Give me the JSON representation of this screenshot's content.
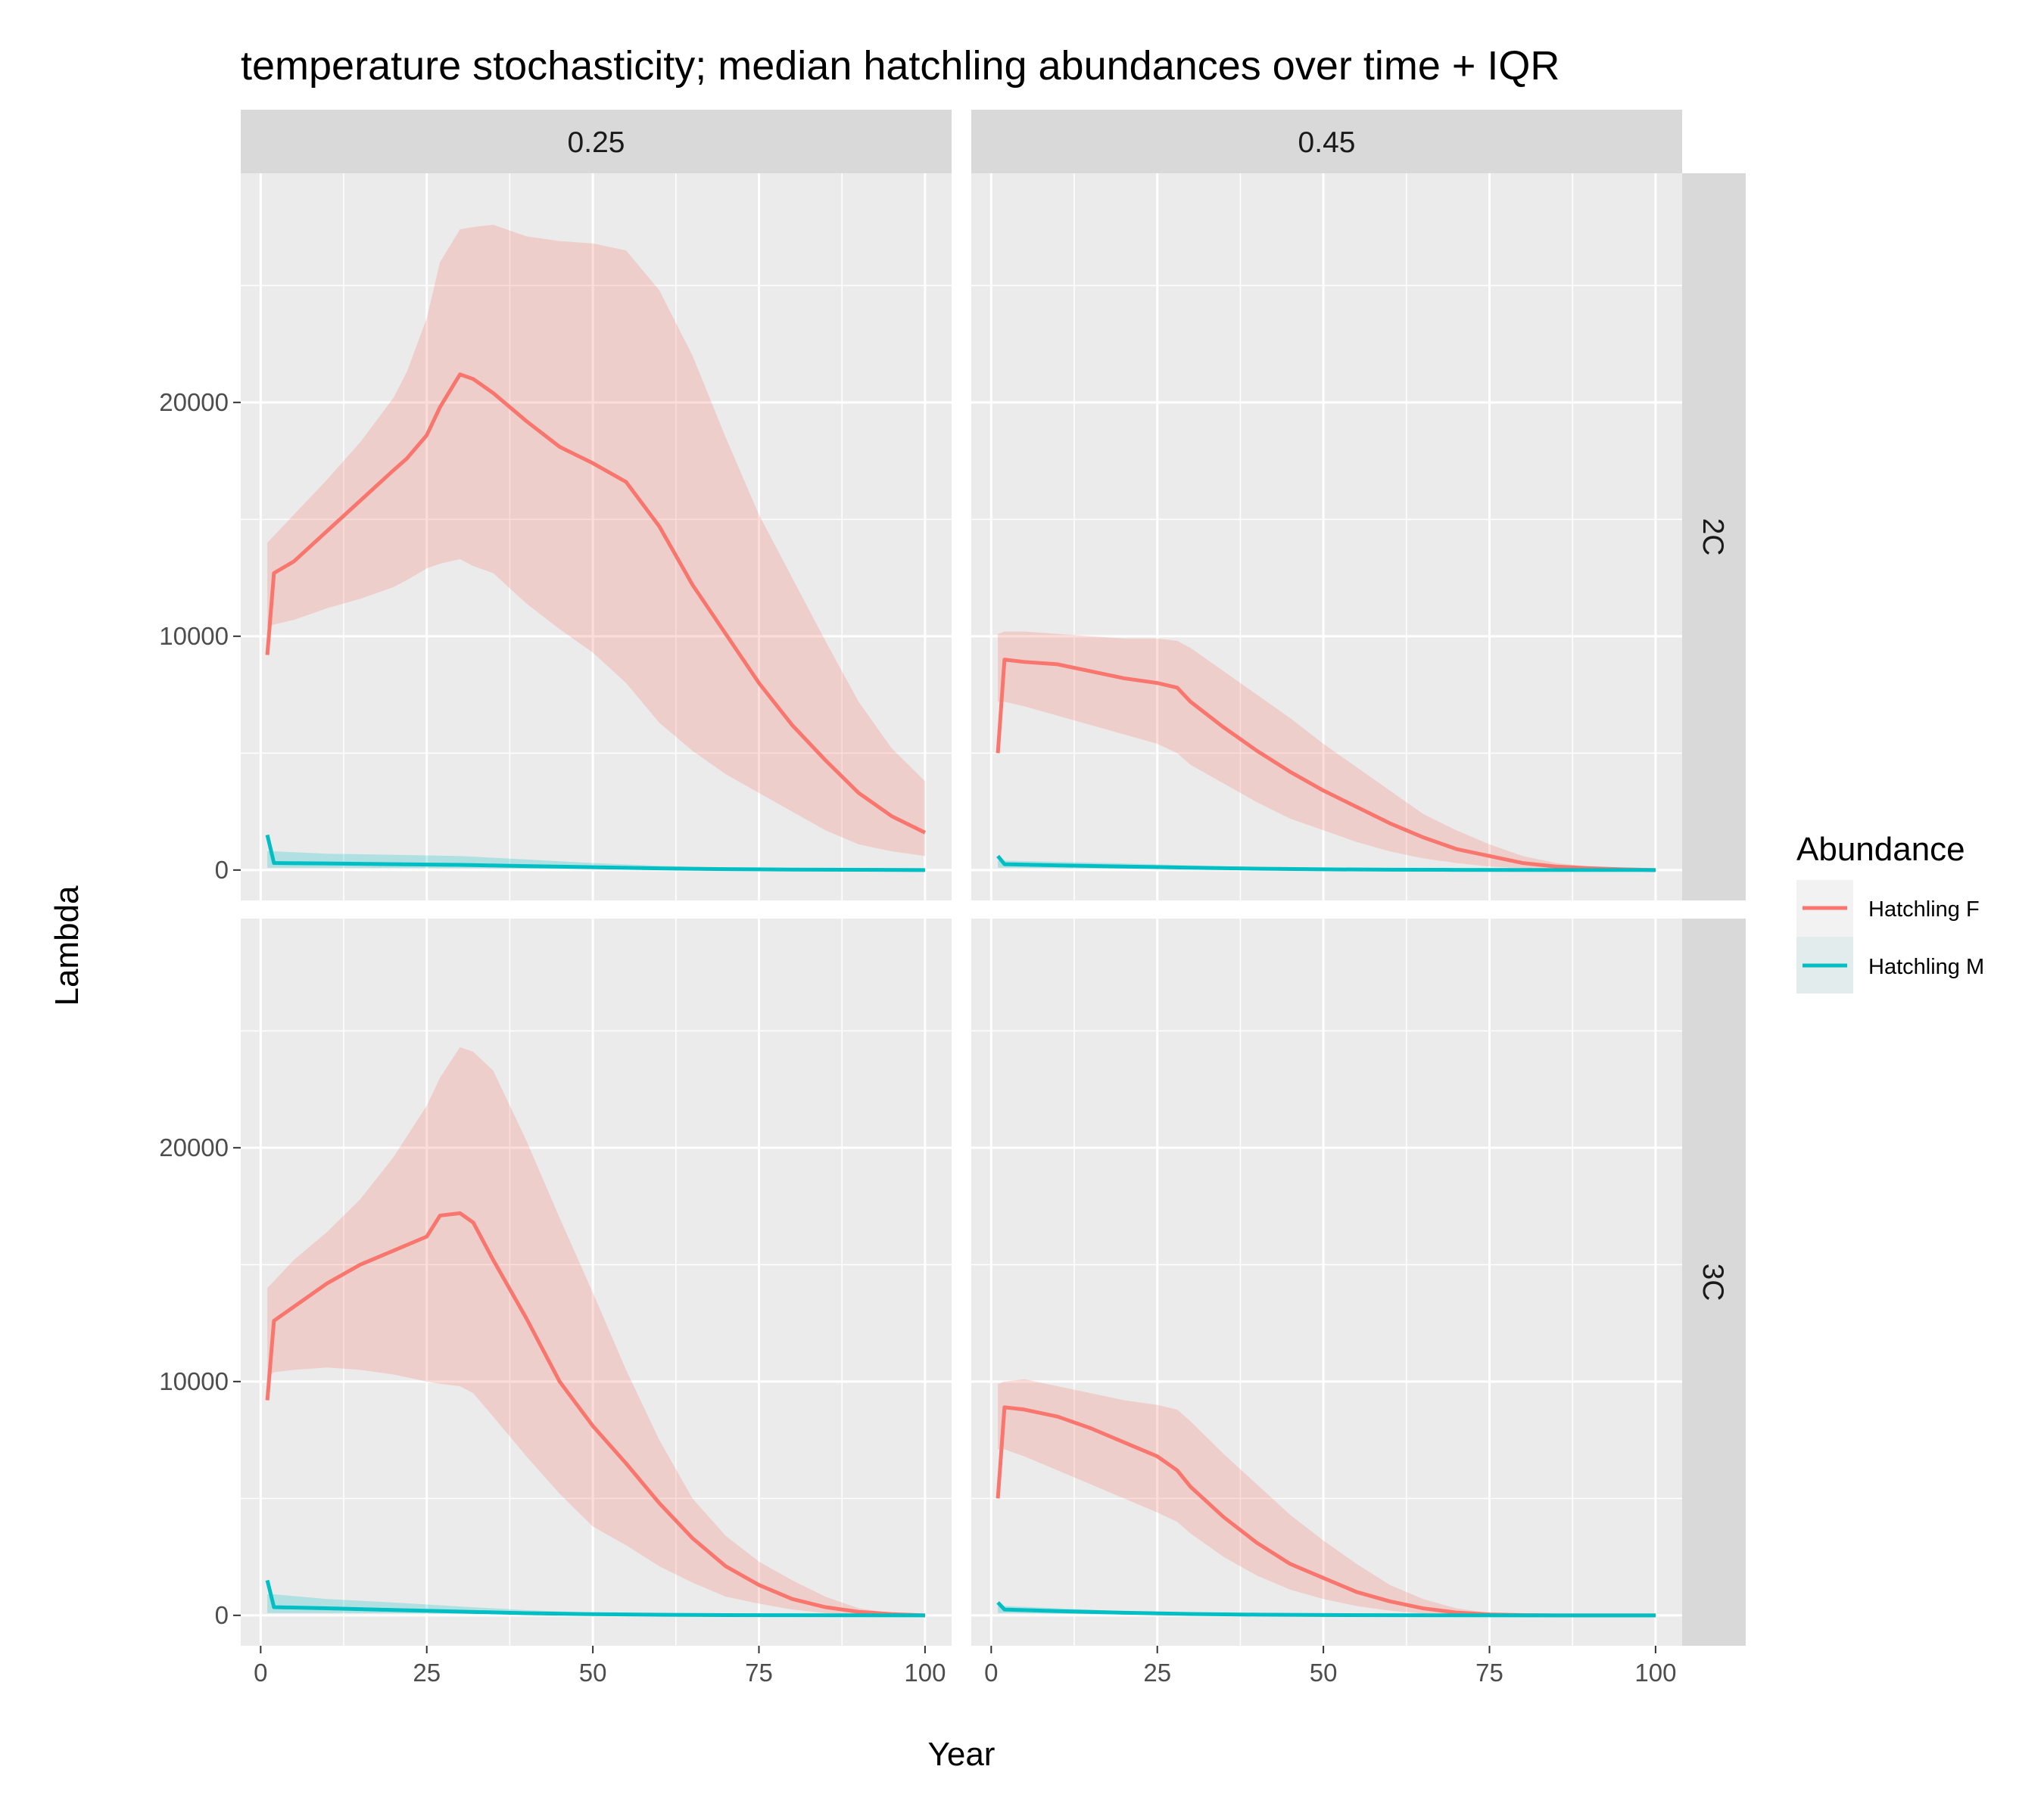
{
  "chart_data": {
    "type": "line",
    "title": "temperature stochasticity; median hatchling abundances over time + IQR",
    "xlabel": "Year",
    "ylabel": "Lambda",
    "xlim": [
      -3,
      104
    ],
    "ylim": [
      -1300,
      29800
    ],
    "x_ticks": [
      0,
      25,
      50,
      75,
      100
    ],
    "y_ticks": [
      0,
      10000,
      20000
    ],
    "x_tick_labels": [
      "0",
      "25",
      "50",
      "75",
      "100"
    ],
    "y_tick_labels": [
      "0",
      "10000",
      "20000"
    ],
    "grid": true,
    "legend": {
      "title": "Abundance",
      "position": "right",
      "entries": [
        {
          "name": "Hatchling F",
          "color": "#F8766D"
        },
        {
          "name": "Hatchling M",
          "color": "#00BFC4"
        }
      ]
    },
    "facet_cols": [
      "0.25",
      "0.45"
    ],
    "facet_rows": [
      "2C",
      "3C"
    ],
    "panels": [
      {
        "col": "0.25",
        "row": "2C",
        "series": [
          {
            "name": "Hatchling F",
            "color": "#F8766D",
            "x": [
              1,
              2,
              5,
              10,
              15,
              20,
              22,
              25,
              27,
              30,
              32,
              35,
              40,
              45,
              50,
              55,
              60,
              65,
              70,
              75,
              80,
              85,
              90,
              95,
              100
            ],
            "median": [
              9200,
              12700,
              13200,
              14500,
              15800,
              17100,
              17600,
              18600,
              19800,
              21200,
              21000,
              20400,
              19200,
              18100,
              17400,
              16600,
              14700,
              12200,
              10100,
              8000,
              6200,
              4700,
              3300,
              2300,
              1600
            ],
            "lower": [
              10400,
              10500,
              10700,
              11200,
              11600,
              12100,
              12400,
              12900,
              13100,
              13300,
              13000,
              12700,
              11400,
              10300,
              9300,
              8000,
              6300,
              5100,
              4100,
              3300,
              2500,
              1700,
              1100,
              800,
              600
            ],
            "upper": [
              14000,
              14300,
              15200,
              16700,
              18300,
              20200,
              21300,
              23600,
              26000,
              27400,
              27500,
              27600,
              27100,
              26900,
              26800,
              26500,
              24800,
              22000,
              18500,
              15200,
              12500,
              9800,
              7200,
              5200,
              3800
            ]
          },
          {
            "name": "Hatchling M",
            "color": "#00BFC4",
            "x": [
              1,
              2,
              10,
              20,
              30,
              40,
              50,
              60,
              70,
              80,
              90,
              100
            ],
            "median": [
              1500,
              300,
              280,
              250,
              220,
              170,
              120,
              70,
              40,
              20,
              10,
              0
            ],
            "lower": [
              100,
              100,
              100,
              90,
              80,
              60,
              40,
              20,
              10,
              0,
              0,
              0
            ],
            "upper": [
              800,
              800,
              700,
              650,
              600,
              450,
              300,
              180,
              100,
              50,
              20,
              10
            ]
          }
        ]
      },
      {
        "col": "0.45",
        "row": "2C",
        "series": [
          {
            "name": "Hatchling F",
            "color": "#F8766D",
            "x": [
              1,
              2,
              5,
              10,
              15,
              20,
              25,
              28,
              30,
              35,
              40,
              45,
              50,
              55,
              60,
              65,
              70,
              75,
              80,
              85,
              90,
              95,
              100
            ],
            "median": [
              5000,
              9000,
              8900,
              8800,
              8500,
              8200,
              8000,
              7800,
              7200,
              6100,
              5100,
              4200,
              3400,
              2700,
              2000,
              1400,
              900,
              600,
              300,
              150,
              80,
              30,
              0
            ],
            "lower": [
              7200,
              7200,
              7000,
              6600,
              6200,
              5800,
              5400,
              5000,
              4500,
              3700,
              2900,
              2200,
              1700,
              1200,
              800,
              500,
              300,
              150,
              80,
              40,
              20,
              0,
              0
            ],
            "upper": [
              10100,
              10200,
              10200,
              10100,
              10000,
              9900,
              9900,
              9800,
              9500,
              8500,
              7500,
              6500,
              5400,
              4400,
              3400,
              2400,
              1700,
              1100,
              600,
              300,
              150,
              50,
              0
            ]
          },
          {
            "name": "Hatchling M",
            "color": "#00BFC4",
            "x": [
              1,
              2,
              10,
              20,
              30,
              40,
              50,
              60,
              70,
              80,
              90,
              100
            ],
            "median": [
              600,
              250,
              200,
              150,
              100,
              60,
              30,
              15,
              8,
              4,
              2,
              0
            ],
            "lower": [
              100,
              100,
              80,
              60,
              40,
              20,
              10,
              5,
              0,
              0,
              0,
              0
            ],
            "upper": [
              400,
              400,
              350,
              280,
              200,
              120,
              60,
              30,
              15,
              8,
              4,
              0
            ]
          }
        ]
      },
      {
        "col": "0.25",
        "row": "3C",
        "series": [
          {
            "name": "Hatchling F",
            "color": "#F8766D",
            "x": [
              1,
              2,
              5,
              10,
              15,
              20,
              25,
              27,
              30,
              32,
              35,
              40,
              45,
              50,
              55,
              60,
              65,
              70,
              75,
              80,
              85,
              90,
              95,
              100
            ],
            "median": [
              9200,
              12600,
              13200,
              14200,
              15000,
              15600,
              16200,
              17100,
              17200,
              16800,
              15200,
              12700,
              10000,
              8100,
              6500,
              4800,
              3300,
              2100,
              1300,
              700,
              350,
              150,
              50,
              0
            ],
            "lower": [
              10200,
              10400,
              10500,
              10600,
              10500,
              10300,
              10000,
              9900,
              9800,
              9500,
              8500,
              6800,
              5200,
              3800,
              3000,
              2100,
              1400,
              800,
              500,
              250,
              100,
              30,
              0,
              0
            ],
            "upper": [
              14000,
              14300,
              15200,
              16400,
              17800,
              19600,
              21800,
              23000,
              24300,
              24100,
              23300,
              20300,
              17000,
              13800,
              10500,
              7500,
              5000,
              3400,
              2300,
              1500,
              800,
              300,
              80,
              0
            ]
          },
          {
            "name": "Hatchling M",
            "color": "#00BFC4",
            "x": [
              1,
              2,
              10,
              20,
              30,
              40,
              50,
              60,
              70,
              80,
              90,
              100
            ],
            "median": [
              1500,
              350,
              300,
              230,
              160,
              90,
              50,
              25,
              12,
              5,
              2,
              0
            ],
            "lower": [
              100,
              100,
              100,
              90,
              70,
              40,
              20,
              10,
              5,
              0,
              0,
              0
            ],
            "upper": [
              900,
              900,
              700,
              550,
              380,
              220,
              120,
              60,
              30,
              12,
              5,
              0
            ]
          }
        ]
      },
      {
        "col": "0.45",
        "row": "3C",
        "series": [
          {
            "name": "Hatchling F",
            "color": "#F8766D",
            "x": [
              1,
              2,
              5,
              10,
              15,
              20,
              25,
              28,
              30,
              35,
              40,
              45,
              50,
              55,
              60,
              65,
              70,
              75,
              80,
              85,
              90,
              95,
              100
            ],
            "median": [
              5000,
              8900,
              8800,
              8500,
              8000,
              7400,
              6800,
              6200,
              5500,
              4200,
              3100,
              2200,
              1600,
              1000,
              600,
              300,
              120,
              40,
              10,
              0,
              0,
              0,
              0
            ],
            "lower": [
              7100,
              7100,
              6800,
              6200,
              5600,
              5000,
              4400,
              4000,
              3500,
              2500,
              1700,
              1100,
              700,
              400,
              200,
              80,
              30,
              0,
              0,
              0,
              0,
              0,
              0
            ],
            "upper": [
              9900,
              10000,
              10100,
              9800,
              9500,
              9200,
              9000,
              8800,
              8300,
              6900,
              5600,
              4300,
              3200,
              2200,
              1300,
              700,
              300,
              100,
              30,
              0,
              0,
              0,
              0
            ]
          },
          {
            "name": "Hatchling M",
            "color": "#00BFC4",
            "x": [
              1,
              2,
              10,
              20,
              30,
              40,
              50,
              60,
              70,
              80,
              90,
              100
            ],
            "median": [
              550,
              250,
              180,
              110,
              60,
              30,
              15,
              5,
              2,
              0,
              0,
              0
            ],
            "lower": [
              100,
              100,
              70,
              40,
              20,
              10,
              5,
              0,
              0,
              0,
              0,
              0
            ],
            "upper": [
              400,
              400,
              300,
              180,
              100,
              50,
              20,
              10,
              4,
              0,
              0,
              0
            ]
          }
        ]
      }
    ]
  }
}
